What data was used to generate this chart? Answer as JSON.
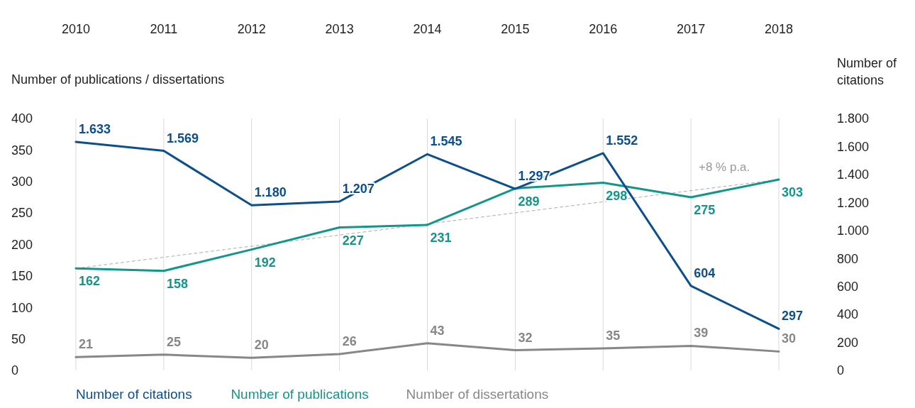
{
  "chart_data": {
    "type": "line",
    "categories": [
      "2010",
      "2011",
      "2012",
      "2013",
      "2014",
      "2015",
      "2016",
      "2017",
      "2018"
    ],
    "ylabel": "Number of publications / dissertations",
    "y2label": "Number of citations",
    "ylim": [
      0,
      400
    ],
    "yticks": [
      0,
      50,
      100,
      150,
      200,
      250,
      300,
      350,
      400
    ],
    "y2lim": [
      0,
      1800
    ],
    "y2ticks": [
      0,
      200,
      400,
      600,
      800,
      {
        "value": 1000,
        "label": "1.000"
      },
      {
        "value": 1200,
        "label": "1.200"
      },
      {
        "value": 1400,
        "label": "1.400"
      },
      {
        "value": 1600,
        "label": "1.600"
      },
      {
        "value": 1800,
        "label": "1.800"
      }
    ],
    "grid": "x",
    "legend": "bottom left",
    "marker": "none",
    "series": [
      {
        "name": "Number of citations",
        "color": "#0b4f8c",
        "axis": "y2",
        "values": [
          1633,
          1569,
          1180,
          1207,
          1545,
          1297,
          1552,
          604,
          297
        ],
        "value_labels": [
          "1.633",
          "1.569",
          "1.180",
          "1.207",
          "1.545",
          "1.297",
          "1.552",
          "604",
          "297"
        ]
      },
      {
        "name": "Number of publications",
        "color": "#12968b",
        "values": [
          162,
          158,
          192,
          227,
          231,
          289,
          298,
          275,
          303
        ],
        "value_labels": [
          "162",
          "158",
          "192",
          "227",
          "231",
          "289",
          "298",
          "275",
          "303"
        ]
      },
      {
        "name": "Number of dissertations",
        "color": "#878787",
        "values": [
          21,
          25,
          20,
          26,
          43,
          32,
          35,
          39,
          30
        ],
        "value_labels": [
          "21",
          "25",
          "20",
          "26",
          "43",
          "32",
          "35",
          "39",
          "30"
        ]
      },
      {
        "type": "line",
        "color": "#aaaaaa",
        "line_style": "dashed",
        "values": [
          162,
          null,
          null,
          null,
          null,
          null,
          null,
          null,
          303
        ]
      }
    ],
    "annotations": [
      "+8 % p.a."
    ]
  }
}
